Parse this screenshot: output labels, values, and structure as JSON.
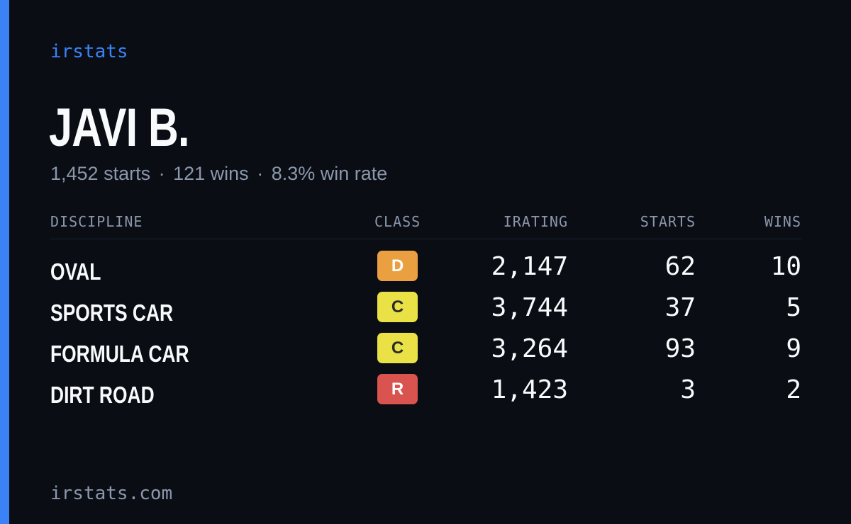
{
  "brand": "irstats",
  "driver": {
    "name": "JAVI B."
  },
  "summary": {
    "starts": "1,452 starts",
    "wins": "121 wins",
    "win_rate": "8.3% win rate",
    "separator": "·"
  },
  "table": {
    "headers": {
      "discipline": "DISCIPLINE",
      "class": "CLASS",
      "irating": "IRATING",
      "starts": "STARTS",
      "wins": "WINS"
    },
    "rows": [
      {
        "discipline": "OVAL",
        "class": "D",
        "class_color": "#eaa040",
        "class_text_color": "#ffffff",
        "irating": "2,147",
        "starts": "62",
        "wins": "10"
      },
      {
        "discipline": "SPORTS CAR",
        "class": "C",
        "class_color": "#e9e145",
        "class_text_color": "#2b2b2b",
        "irating": "3,744",
        "starts": "37",
        "wins": "5"
      },
      {
        "discipline": "FORMULA CAR",
        "class": "C",
        "class_color": "#e9e145",
        "class_text_color": "#2b2b2b",
        "irating": "3,264",
        "starts": "93",
        "wins": "9"
      },
      {
        "discipline": "DIRT ROAD",
        "class": "R",
        "class_color": "#d9534f",
        "class_text_color": "#ffffff",
        "irating": "1,423",
        "starts": "3",
        "wins": "2"
      }
    ]
  },
  "footer": {
    "domain": "irstats.com"
  },
  "colors": {
    "background": "#0a0d14",
    "accent": "#3b82f6",
    "muted": "#8b97ab",
    "text": "#f8fafc"
  }
}
